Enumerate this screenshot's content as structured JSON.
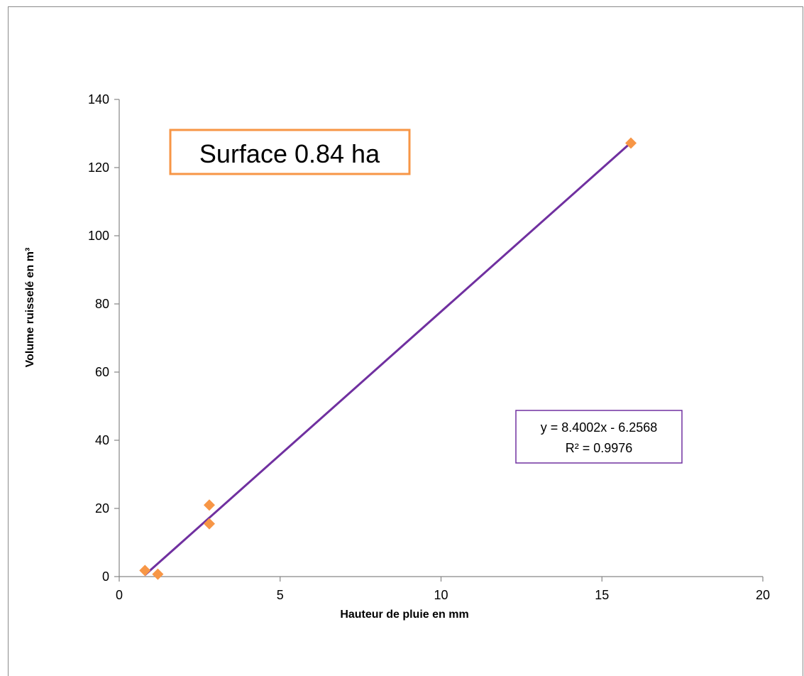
{
  "chart_data": {
    "type": "scatter",
    "xlabel": "Hauteur de pluie en mm",
    "ylabel": "Volume ruisselé en m³",
    "xlim": [
      0,
      20
    ],
    "ylim": [
      0,
      140
    ],
    "x_ticks": [
      0,
      5,
      10,
      15,
      20
    ],
    "y_ticks": [
      0,
      20,
      40,
      60,
      80,
      100,
      120,
      140
    ],
    "x_tick_labels": [
      "0",
      "5",
      "10",
      "15",
      "20"
    ],
    "y_tick_labels": [
      "0",
      "20",
      "40",
      "60",
      "80",
      "100",
      "120",
      "140"
    ],
    "grid": false,
    "series": [
      {
        "x": [
          0.8,
          1.2,
          2.8,
          2.8,
          15.9
        ],
        "y": [
          1.8,
          0.7,
          21.0,
          15.5,
          127.2
        ],
        "marker": "diamond",
        "color": "#f79646"
      }
    ],
    "trendline": {
      "slope": 8.4002,
      "intercept": -6.2568,
      "x_range": [
        0.8,
        15.9
      ],
      "color": "#7030a0",
      "equation": "y = 8.4002x - 6.2568",
      "r_squared": "R² = 0.9976",
      "border_color": "#7030a0"
    },
    "annotation": {
      "text": "Surface 0.84 ha",
      "border_color": "#f79646"
    }
  }
}
